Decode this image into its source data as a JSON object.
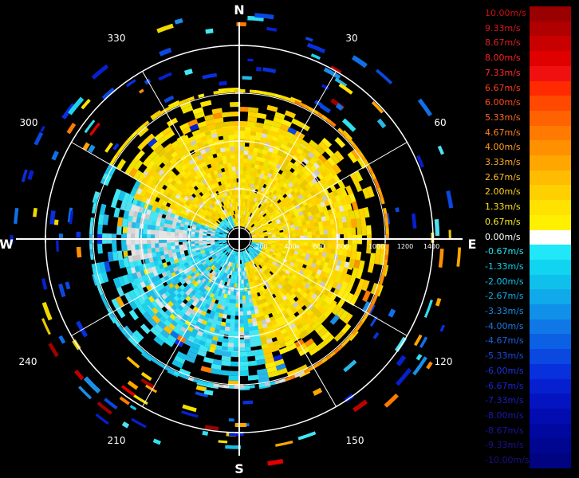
{
  "compass": {
    "north": "N",
    "south": "S",
    "east": "E",
    "west": "W",
    "bearings": [
      "30",
      "60",
      "120",
      "150",
      "210",
      "240",
      "300",
      "330"
    ]
  },
  "range_labels": [
    "200",
    "400",
    "600",
    "800",
    "1000",
    "1200",
    "1400"
  ],
  "legend": [
    {
      "label": "10.00m/s",
      "color": "#9a0000",
      "text_color": "#d01010"
    },
    {
      "label": "9.33m/s",
      "color": "#b00000",
      "text_color": "#d81818"
    },
    {
      "label": "8.67m/s",
      "color": "#c80000",
      "text_color": "#e02020"
    },
    {
      "label": "8.00m/s",
      "color": "#e00000",
      "text_color": "#ff2020"
    },
    {
      "label": "7.33m/s",
      "color": "#f01010",
      "text_color": "#ff2a2a"
    },
    {
      "label": "6.67m/s",
      "color": "#ff2a00",
      "text_color": "#ff3a1a"
    },
    {
      "label": "6.00m/s",
      "color": "#ff4800",
      "text_color": "#ff4a1a"
    },
    {
      "label": "5.33m/s",
      "color": "#ff6200",
      "text_color": "#ff6a20"
    },
    {
      "label": "4.67m/s",
      "color": "#ff7a00",
      "text_color": "#ff8020"
    },
    {
      "label": "4.00m/s",
      "color": "#ff9000",
      "text_color": "#ff9a20"
    },
    {
      "label": "3.33m/s",
      "color": "#ffa600",
      "text_color": "#ffaa20"
    },
    {
      "label": "2.67m/s",
      "color": "#ffbc00",
      "text_color": "#ffbe20"
    },
    {
      "label": "2.00m/s",
      "color": "#ffd000",
      "text_color": "#ffd020"
    },
    {
      "label": "1.33m/s",
      "color": "#ffe200",
      "text_color": "#ffe020"
    },
    {
      "label": "0.67m/s",
      "color": "#fff000",
      "text_color": "#fff020"
    },
    {
      "label": "0.00m/s",
      "color": "#ffffff",
      "text_color": "#ffffff"
    },
    {
      "label": "-0.67m/s",
      "color": "#20e8f8",
      "text_color": "#20e8f8"
    },
    {
      "label": "-1.33m/s",
      "color": "#10d4f0",
      "text_color": "#10d4f0"
    },
    {
      "label": "-2.00m/s",
      "color": "#10c0ec",
      "text_color": "#10c0ec"
    },
    {
      "label": "-2.67m/s",
      "color": "#10aaea",
      "text_color": "#10aaea"
    },
    {
      "label": "-3.33m/s",
      "color": "#1090e8",
      "text_color": "#1090e8"
    },
    {
      "label": "-4.00m/s",
      "color": "#1078e6",
      "text_color": "#1a7ae6"
    },
    {
      "label": "-4.67m/s",
      "color": "#0c60e4",
      "text_color": "#1a62e4"
    },
    {
      "label": "-5.33m/s",
      "color": "#0a48e0",
      "text_color": "#1a4ae0"
    },
    {
      "label": "-6.00m/s",
      "color": "#0830dc",
      "text_color": "#1a34dc"
    },
    {
      "label": "-6.67m/s",
      "color": "#0620d0",
      "text_color": "#1a26d0"
    },
    {
      "label": "-7.33m/s",
      "color": "#0414c0",
      "text_color": "#1a1ec0"
    },
    {
      "label": "-8.00m/s",
      "color": "#020cb0",
      "text_color": "#1a18b0"
    },
    {
      "label": "-8.67m/s",
      "color": "#0008a0",
      "text_color": "#1a14a0"
    },
    {
      "label": "-9.33m/s",
      "color": "#000690",
      "text_color": "#1a1290"
    },
    {
      "label": "-10.00m/s",
      "color": "#000480",
      "text_color": "#1a1080"
    }
  ]
}
